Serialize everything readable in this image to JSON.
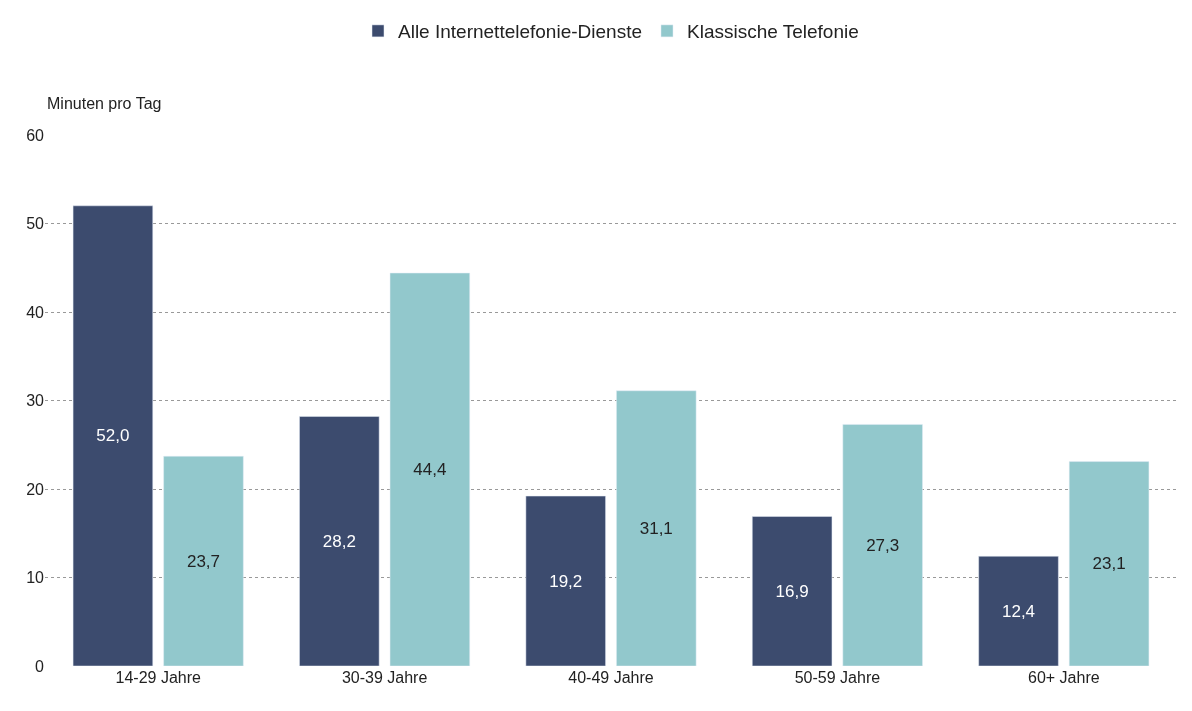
{
  "chart_data": {
    "type": "bar",
    "ylabel": "Minuten pro Tag",
    "categories": [
      "14-29 Jahre",
      "30-39 Jahre",
      "40-49 Jahre",
      "50-59 Jahre",
      "60+ Jahre"
    ],
    "series": [
      {
        "name": "Alle Internettelefonie-Dienste",
        "color": "#3c4b6e",
        "values": [
          52.0,
          28.2,
          19.2,
          16.9,
          12.4
        ],
        "value_labels": [
          "52,0",
          "28,2",
          "19,2",
          "16,9",
          "12,4"
        ]
      },
      {
        "name": "Klassische Telefonie",
        "color": "#92c8cc",
        "values": [
          23.7,
          44.4,
          31.1,
          27.3,
          23.1
        ],
        "value_labels": [
          "23,7",
          "44,4",
          "31,1",
          "27,3",
          "23,1"
        ]
      }
    ],
    "ylim": [
      0,
      60
    ],
    "yticks": [
      0,
      10,
      20,
      30,
      40,
      50,
      60
    ],
    "grid": "y",
    "legend": "top"
  }
}
